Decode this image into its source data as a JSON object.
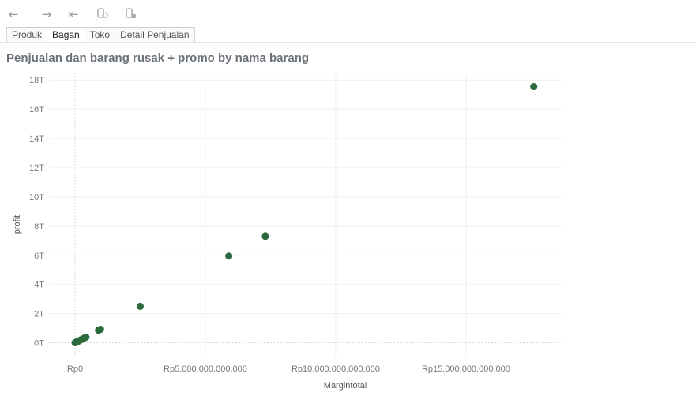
{
  "toolbar": {
    "icons": [
      "back-arrow-icon",
      "forward-arrow-icon",
      "revert-to-start-icon",
      "refresh-data-icon",
      "pause-updates-icon"
    ]
  },
  "tabs": [
    {
      "label": "Produk",
      "active": false
    },
    {
      "label": "Bagan",
      "active": true
    },
    {
      "label": "Toko",
      "active": false
    },
    {
      "label": "Detail Penjualan",
      "active": false
    }
  ],
  "chart_data": {
    "type": "scatter",
    "title": "Penjualan dan barang rusak + promo by nama barang",
    "xlabel": "Margintotal",
    "ylabel": "profit",
    "xlim": [
      -1000000000000,
      18700000000000
    ],
    "ylim": [
      -1000000000000,
      18500000000000
    ],
    "x_ticks": [
      0,
      5000000000000,
      10000000000000,
      15000000000000
    ],
    "x_tick_labels": [
      "Rp0",
      "Rp5.000.000.000.000",
      "Rp10.000.000.000.000",
      "Rp15.000.000.000.000"
    ],
    "y_ticks": [
      0,
      2000000000000,
      4000000000000,
      6000000000000,
      8000000000000,
      10000000000000,
      12000000000000,
      14000000000000,
      16000000000000,
      18000000000000
    ],
    "y_tick_labels": [
      "0T",
      "2T",
      "4T",
      "6T",
      "8T",
      "10T",
      "12T",
      "14T",
      "16T",
      "18T"
    ],
    "grid": true,
    "point_color": "#2a6a3c",
    "points": [
      {
        "x": 0,
        "y": 0
      },
      {
        "x": 50000000000,
        "y": 50000000000
      },
      {
        "x": 100000000000,
        "y": 100000000000
      },
      {
        "x": 150000000000,
        "y": 120000000000
      },
      {
        "x": 220000000000,
        "y": 200000000000
      },
      {
        "x": 280000000000,
        "y": 250000000000
      },
      {
        "x": 350000000000,
        "y": 320000000000
      },
      {
        "x": 420000000000,
        "y": 380000000000
      },
      {
        "x": 900000000000,
        "y": 850000000000
      },
      {
        "x": 980000000000,
        "y": 920000000000
      },
      {
        "x": 2500000000000,
        "y": 2500000000000
      },
      {
        "x": 5900000000000,
        "y": 5950000000000
      },
      {
        "x": 7300000000000,
        "y": 7300000000000
      },
      {
        "x": 17600000000000,
        "y": 17550000000000
      }
    ]
  }
}
